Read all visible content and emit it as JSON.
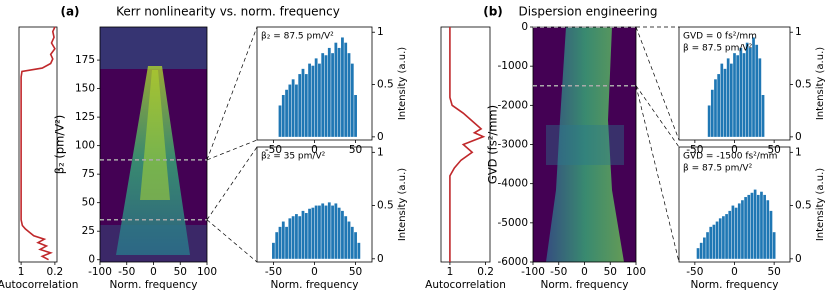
{
  "chart_data": [
    {
      "type": "line",
      "xlabel": "Autocorrelation",
      "xlim": [
        1.05,
        0.15
      ],
      "xticks": [
        1,
        0.2
      ],
      "ylim": [
        -2,
        204
      ],
      "color": "#c0282b",
      "y": [
        0,
        3,
        6,
        9,
        12,
        15,
        18,
        21,
        24,
        27,
        30,
        35,
        40,
        60,
        100,
        140,
        160,
        165,
        168,
        172,
        176,
        180,
        185,
        190,
        195,
        200,
        204
      ],
      "values": [
        0.35,
        0.5,
        0.3,
        0.55,
        0.4,
        0.6,
        0.45,
        0.7,
        0.8,
        0.9,
        0.97,
        1,
        1,
        1,
        1,
        1,
        1,
        0.98,
        0.5,
        0.3,
        0.25,
        0.3,
        0.2,
        0.28,
        0.22,
        0.25,
        0.2
      ]
    },
    {
      "type": "heatmap",
      "panel_label": "(a)",
      "title": "Kerr nonlinearity vs. norm. frequency",
      "xlabel": "Norm. frequency",
      "ylabel": "β₂ (pm/V²)",
      "xlim": [
        -100,
        100
      ],
      "xticks": [
        -100,
        -50,
        0,
        50,
        100
      ],
      "ylim": [
        -2,
        204
      ],
      "yticks": [
        0,
        25,
        50,
        75,
        100,
        125,
        150,
        175
      ],
      "markers": [
        87.5,
        35
      ],
      "marker_color": "#aaaaaa"
    },
    {
      "type": "bar",
      "annotation": [
        "β₂ = 87.5 pm/V²"
      ],
      "ylabel": "Intensity (a.u.)",
      "color": "#1f77b4",
      "xlim": [
        -70,
        70
      ],
      "xticks": [
        -50,
        0,
        50
      ],
      "ylim": [
        -0.03,
        1.05
      ],
      "yticks": [
        0,
        0.5,
        1
      ],
      "x": [
        -42,
        -38,
        -34,
        -30,
        -26,
        -22,
        -18,
        -14,
        -10,
        -6,
        -2,
        2,
        6,
        10,
        14,
        18,
        22,
        26,
        30,
        34,
        38,
        42,
        46,
        50
      ],
      "values": [
        0.3,
        0.4,
        0.45,
        0.5,
        0.55,
        0.5,
        0.6,
        0.65,
        0.6,
        0.7,
        0.68,
        0.75,
        0.7,
        0.8,
        0.78,
        0.85,
        0.8,
        0.9,
        0.85,
        0.95,
        0.9,
        0.8,
        0.7,
        0.4
      ]
    },
    {
      "type": "bar",
      "annotation": [
        "β₂ = 35 pm/V²"
      ],
      "xlabel": "Norm. frequency",
      "ylabel": "Intensity (a.u.)",
      "color": "#1f77b4",
      "xlim": [
        -70,
        70
      ],
      "xticks": [
        -50,
        0,
        50
      ],
      "ylim": [
        -0.03,
        1.05
      ],
      "yticks": [
        0,
        0.5,
        1
      ],
      "x": [
        -50,
        -46,
        -42,
        -38,
        -34,
        -30,
        -26,
        -22,
        -18,
        -14,
        -10,
        -6,
        -2,
        2,
        6,
        10,
        14,
        18,
        22,
        26,
        30,
        34,
        38,
        42,
        46,
        50,
        54
      ],
      "values": [
        0.15,
        0.25,
        0.3,
        0.35,
        0.3,
        0.38,
        0.4,
        0.42,
        0.4,
        0.45,
        0.43,
        0.47,
        0.48,
        0.5,
        0.5,
        0.52,
        0.5,
        0.53,
        0.5,
        0.52,
        0.48,
        0.45,
        0.4,
        0.35,
        0.3,
        0.25,
        0.15
      ]
    },
    {
      "type": "line",
      "xlabel": "Autocorrelation",
      "xlim": [
        1.2,
        0.1
      ],
      "xticks": [
        1,
        0.2
      ],
      "ylim": [
        -6000,
        0
      ],
      "color": "#c0282b",
      "y": [
        0,
        -1000,
        -1800,
        -2000,
        -2200,
        -2400,
        -2600,
        -2700,
        -2800,
        -3000,
        -3200,
        -3400,
        -3600,
        -3800,
        -4000,
        -5000,
        -6000
      ],
      "values": [
        1,
        1,
        1,
        0.95,
        0.7,
        0.5,
        0.3,
        0.45,
        0.25,
        0.7,
        0.5,
        0.75,
        0.9,
        1,
        1,
        1,
        1
      ]
    },
    {
      "type": "heatmap",
      "panel_label": "(b)",
      "title": "Dispersion engineering",
      "xlabel": "Norm. frequency",
      "ylabel": "GVD (fs²/mm)",
      "xlim": [
        -100,
        100
      ],
      "xticks": [
        -100,
        -50,
        0,
        50,
        100
      ],
      "ylim": [
        -6000,
        0
      ],
      "yticks": [
        -6000,
        -5000,
        -4000,
        -3000,
        -2000,
        -1000,
        0
      ],
      "markers": [
        0,
        -1500
      ],
      "marker_color": "#aaaaaa"
    },
    {
      "type": "bar",
      "annotation": [
        "GVD = 0 fs²/mm",
        "β = 87.5 pm/V²"
      ],
      "ylabel": "Intensity (a.u.)",
      "color": "#1f77b4",
      "xlim": [
        -70,
        70
      ],
      "xticks": [
        -50,
        0,
        50
      ],
      "ylim": [
        -0.03,
        1.05
      ],
      "yticks": [
        0,
        0.5,
        1
      ],
      "x": [
        -32,
        -28,
        -24,
        -20,
        -16,
        -12,
        -8,
        -4,
        0,
        4,
        8,
        12,
        16,
        20,
        24,
        28,
        32,
        36
      ],
      "values": [
        0.3,
        0.45,
        0.55,
        0.6,
        0.7,
        0.65,
        0.75,
        0.7,
        0.8,
        0.78,
        0.85,
        0.8,
        0.9,
        0.85,
        0.95,
        0.88,
        0.75,
        0.4
      ]
    },
    {
      "type": "bar",
      "annotation": [
        "GVD = -1500 fs²/mm",
        "β = 87.5 pm/V²"
      ],
      "xlabel": "Norm. frequency",
      "ylabel": "Intensity (a.u.)",
      "color": "#1f77b4",
      "xlim": [
        -70,
        70
      ],
      "xticks": [
        -50,
        0,
        50
      ],
      "ylim": [
        -0.03,
        1.05
      ],
      "yticks": [
        0,
        0.5,
        1
      ],
      "x": [
        -46,
        -42,
        -38,
        -34,
        -30,
        -26,
        -22,
        -18,
        -14,
        -10,
        -6,
        -2,
        2,
        6,
        10,
        14,
        18,
        22,
        26,
        30,
        34,
        38,
        42,
        46,
        50
      ],
      "values": [
        0.1,
        0.15,
        0.2,
        0.25,
        0.3,
        0.32,
        0.35,
        0.38,
        0.4,
        0.42,
        0.45,
        0.5,
        0.48,
        0.52,
        0.55,
        0.58,
        0.6,
        0.62,
        0.65,
        0.6,
        0.63,
        0.6,
        0.55,
        0.45,
        0.25
      ]
    }
  ]
}
